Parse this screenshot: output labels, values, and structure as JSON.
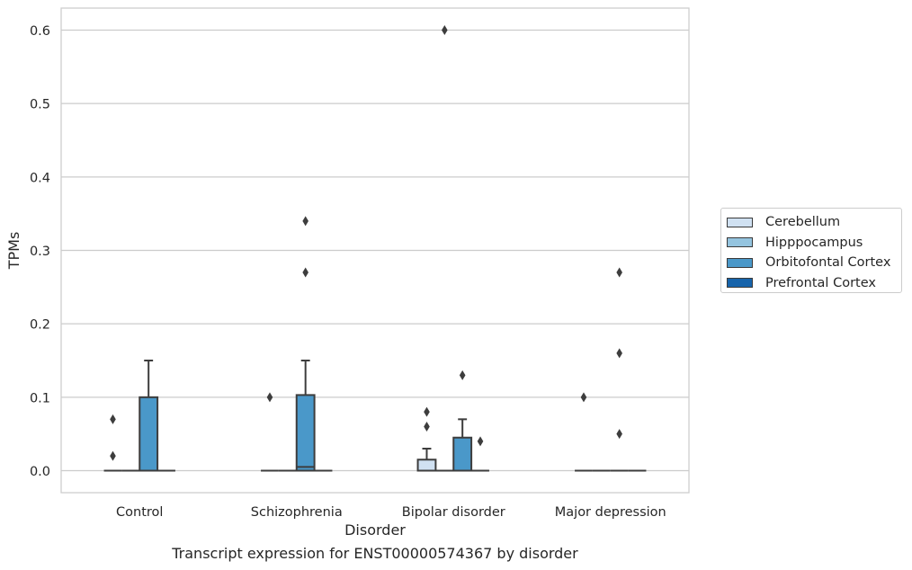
{
  "chart_data": {
    "type": "box",
    "title": "",
    "caption": "Transcript expression for ENST00000574367 by disorder",
    "xlabel": "Disorder",
    "ylabel": "TPMs",
    "ylim": [
      -0.03,
      0.63
    ],
    "yticks": [
      0.0,
      0.1,
      0.2,
      0.3,
      0.4,
      0.5,
      0.6
    ],
    "ytick_labels": [
      "0.0",
      "0.1",
      "0.2",
      "0.3",
      "0.4",
      "0.5",
      "0.6"
    ],
    "grid": "horizontal",
    "legend_position": "right",
    "categories": [
      "Control",
      "Schizophrenia",
      "Bipolar disorder",
      "Major depression"
    ],
    "series": [
      {
        "name": "Cerebellum",
        "color": "#d0e1f2",
        "boxes": [
          {
            "q1": 0,
            "median": 0,
            "q3": 0,
            "whisker_low": 0,
            "whisker_high": 0,
            "outliers": [
              0.02,
              0.07
            ]
          },
          {
            "q1": 0,
            "median": 0,
            "q3": 0,
            "whisker_low": 0,
            "whisker_high": 0,
            "outliers": [
              0.1
            ]
          },
          {
            "q1": 0,
            "median": 0,
            "q3": 0.015,
            "whisker_low": 0,
            "whisker_high": 0.03,
            "outliers": [
              0.06,
              0.08
            ]
          },
          {
            "q1": 0,
            "median": 0,
            "q3": 0,
            "whisker_low": 0,
            "whisker_high": 0,
            "outliers": [
              0.1
            ]
          }
        ]
      },
      {
        "name": "Hipppocampus",
        "color": "#94c4df",
        "boxes": [
          {
            "q1": 0,
            "median": 0,
            "q3": 0,
            "whisker_low": 0,
            "whisker_high": 0,
            "outliers": []
          },
          {
            "q1": 0,
            "median": 0,
            "q3": 0,
            "whisker_low": 0,
            "whisker_high": 0,
            "outliers": []
          },
          {
            "q1": 0,
            "median": 0,
            "q3": 0,
            "whisker_low": 0,
            "whisker_high": 0,
            "outliers": [
              0.6
            ]
          },
          {
            "q1": 0,
            "median": 0,
            "q3": 0,
            "whisker_low": 0,
            "whisker_high": 0,
            "outliers": []
          }
        ]
      },
      {
        "name": "Orbitofontal Cortex",
        "color": "#4a98c9",
        "boxes": [
          {
            "q1": 0,
            "median": 0,
            "q3": 0.1,
            "whisker_low": 0,
            "whisker_high": 0.15,
            "outliers": []
          },
          {
            "q1": 0,
            "median": 0.005,
            "q3": 0.103,
            "whisker_low": 0,
            "whisker_high": 0.15,
            "outliers": [
              0.27,
              0.34
            ]
          },
          {
            "q1": 0,
            "median": 0,
            "q3": 0.045,
            "whisker_low": 0,
            "whisker_high": 0.07,
            "outliers": [
              0.13
            ]
          },
          {
            "q1": 0,
            "median": 0,
            "q3": 0,
            "whisker_low": 0,
            "whisker_high": 0,
            "outliers": [
              0.05,
              0.16,
              0.27
            ]
          }
        ]
      },
      {
        "name": "Prefrontal Cortex",
        "color": "#1764ab",
        "boxes": [
          {
            "q1": 0,
            "median": 0,
            "q3": 0,
            "whisker_low": 0,
            "whisker_high": 0,
            "outliers": []
          },
          {
            "q1": 0,
            "median": 0,
            "q3": 0,
            "whisker_low": 0,
            "whisker_high": 0,
            "outliers": []
          },
          {
            "q1": 0,
            "median": 0,
            "q3": 0,
            "whisker_low": 0,
            "whisker_high": 0,
            "outliers": [
              0.04
            ]
          },
          {
            "q1": 0,
            "median": 0,
            "q3": 0,
            "whisker_low": 0,
            "whisker_high": 0,
            "outliers": []
          }
        ]
      }
    ]
  }
}
